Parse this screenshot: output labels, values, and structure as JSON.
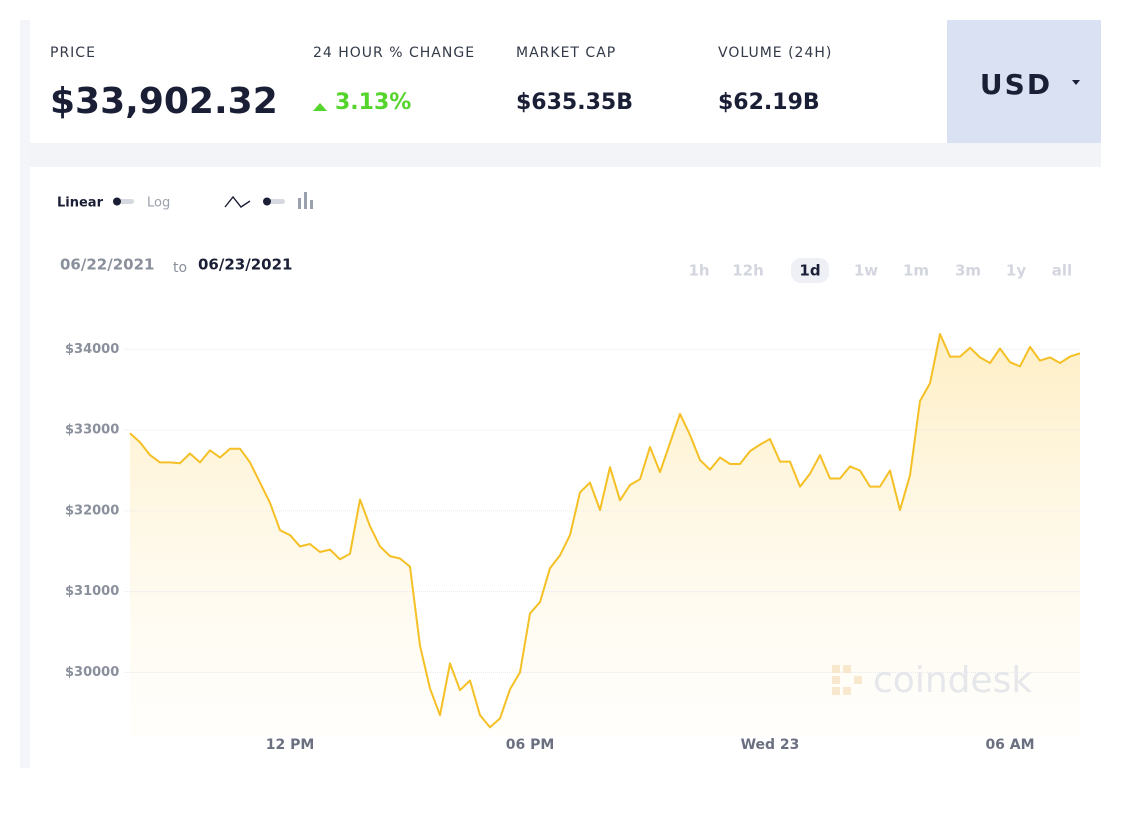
{
  "header": {
    "stats": [
      {
        "label": "PRICE",
        "value": "$33,902.32"
      },
      {
        "label": "24 HOUR % CHANGE",
        "value": "3.13%"
      },
      {
        "label": "MARKET CAP",
        "value": "$635.35B"
      },
      {
        "label": "VOLUME (24H)",
        "value": "$62.19B"
      }
    ],
    "currency": "USD"
  },
  "controls": {
    "scale_linear": "Linear",
    "scale_log": "Log"
  },
  "date_range": {
    "from": "06/22/2021",
    "to_word": "to",
    "to": "06/23/2021"
  },
  "timeframes": {
    "options": [
      "1h",
      "12h",
      "1d",
      "1w",
      "1m",
      "3m",
      "1y",
      "all"
    ],
    "active": "1d"
  },
  "watermark": "coindesk",
  "chart_data": {
    "type": "line",
    "color": "#f5c025",
    "grid": true,
    "ylim": [
      29200,
      34400
    ],
    "yticks": [
      {
        "value": 30000,
        "label": "$30000"
      },
      {
        "value": 31000,
        "label": "$31000"
      },
      {
        "value": 32000,
        "label": "$32000"
      },
      {
        "value": 33000,
        "label": "$33000"
      },
      {
        "value": 34000,
        "label": "$34000"
      }
    ],
    "categories": [
      null,
      null,
      null,
      null,
      null,
      null,
      null,
      null,
      null,
      null,
      null,
      null,
      null,
      null,
      null,
      null,
      "12 PM",
      null,
      null,
      null,
      null,
      null,
      null,
      null,
      null,
      null,
      null,
      null,
      null,
      null,
      null,
      null,
      null,
      null,
      null,
      null,
      null,
      null,
      null,
      null,
      "06 PM",
      null,
      null,
      null,
      null,
      null,
      null,
      null,
      null,
      null,
      null,
      null,
      null,
      null,
      null,
      null,
      null,
      null,
      null,
      null,
      null,
      null,
      null,
      null,
      "Wed 23",
      null,
      null,
      null,
      null,
      null,
      null,
      null,
      null,
      null,
      null,
      null,
      null,
      null,
      null,
      null,
      null,
      null,
      null,
      null,
      null,
      null,
      null,
      null,
      "06 AM",
      null,
      null,
      null,
      null,
      null,
      null,
      null
    ],
    "values": [
      32960,
      32850,
      32690,
      32600,
      32600,
      32590,
      32710,
      32600,
      32750,
      32660,
      32770,
      32770,
      32600,
      32350,
      32100,
      31760,
      31700,
      31560,
      31590,
      31490,
      31520,
      31400,
      31470,
      32140,
      31810,
      31560,
      31440,
      31410,
      31310,
      30330,
      29800,
      29470,
      30110,
      29780,
      29900,
      29470,
      29320,
      29430,
      29790,
      30000,
      30730,
      30870,
      31290,
      31450,
      31700,
      32230,
      32350,
      32010,
      32540,
      32130,
      32320,
      32390,
      32790,
      32480,
      32840,
      33200,
      32940,
      32630,
      32510,
      32660,
      32580,
      32580,
      32740,
      32820,
      32890,
      32610,
      32610,
      32300,
      32460,
      32690,
      32400,
      32400,
      32550,
      32500,
      32300,
      32300,
      32500,
      32010,
      32440,
      33360,
      33580,
      34190,
      33910,
      33910,
      34020,
      33900,
      33830,
      34010,
      33840,
      33790,
      34030,
      33860,
      33900,
      33830,
      33910,
      33950
    ]
  }
}
